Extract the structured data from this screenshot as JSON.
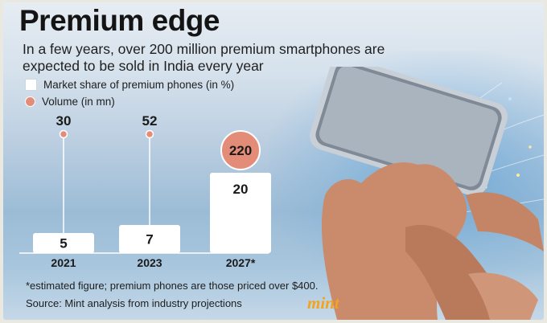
{
  "title": "Premium edge",
  "subtitle": "In a few years, over 200 million premium smartphones are expected to be sold in India every year",
  "legend": {
    "share": "Market share of premium phones (in %)",
    "volume": "Volume (in mn)"
  },
  "chart_data": {
    "type": "bar",
    "title": "Premium edge",
    "categories": [
      "2021",
      "2023",
      "2027*"
    ],
    "series": [
      {
        "name": "Market share of premium phones (in %)",
        "values": [
          5,
          7,
          20
        ],
        "label_values": [
          "5",
          "7",
          "20"
        ]
      },
      {
        "name": "Volume (in mn)",
        "values": [
          30,
          52,
          220
        ],
        "label_values": [
          "30",
          "52",
          "220"
        ]
      }
    ],
    "xlabel": "",
    "ylabel": "",
    "ylim": [
      0,
      20
    ]
  },
  "footnote": "*estimated figure; premium phones are those priced over $400.",
  "source": "Source: Mint analysis from industry projections",
  "brand": "mint",
  "colors": {
    "accent": "#e38d78",
    "bar": "#ffffff",
    "brand": "#f3a31d"
  }
}
